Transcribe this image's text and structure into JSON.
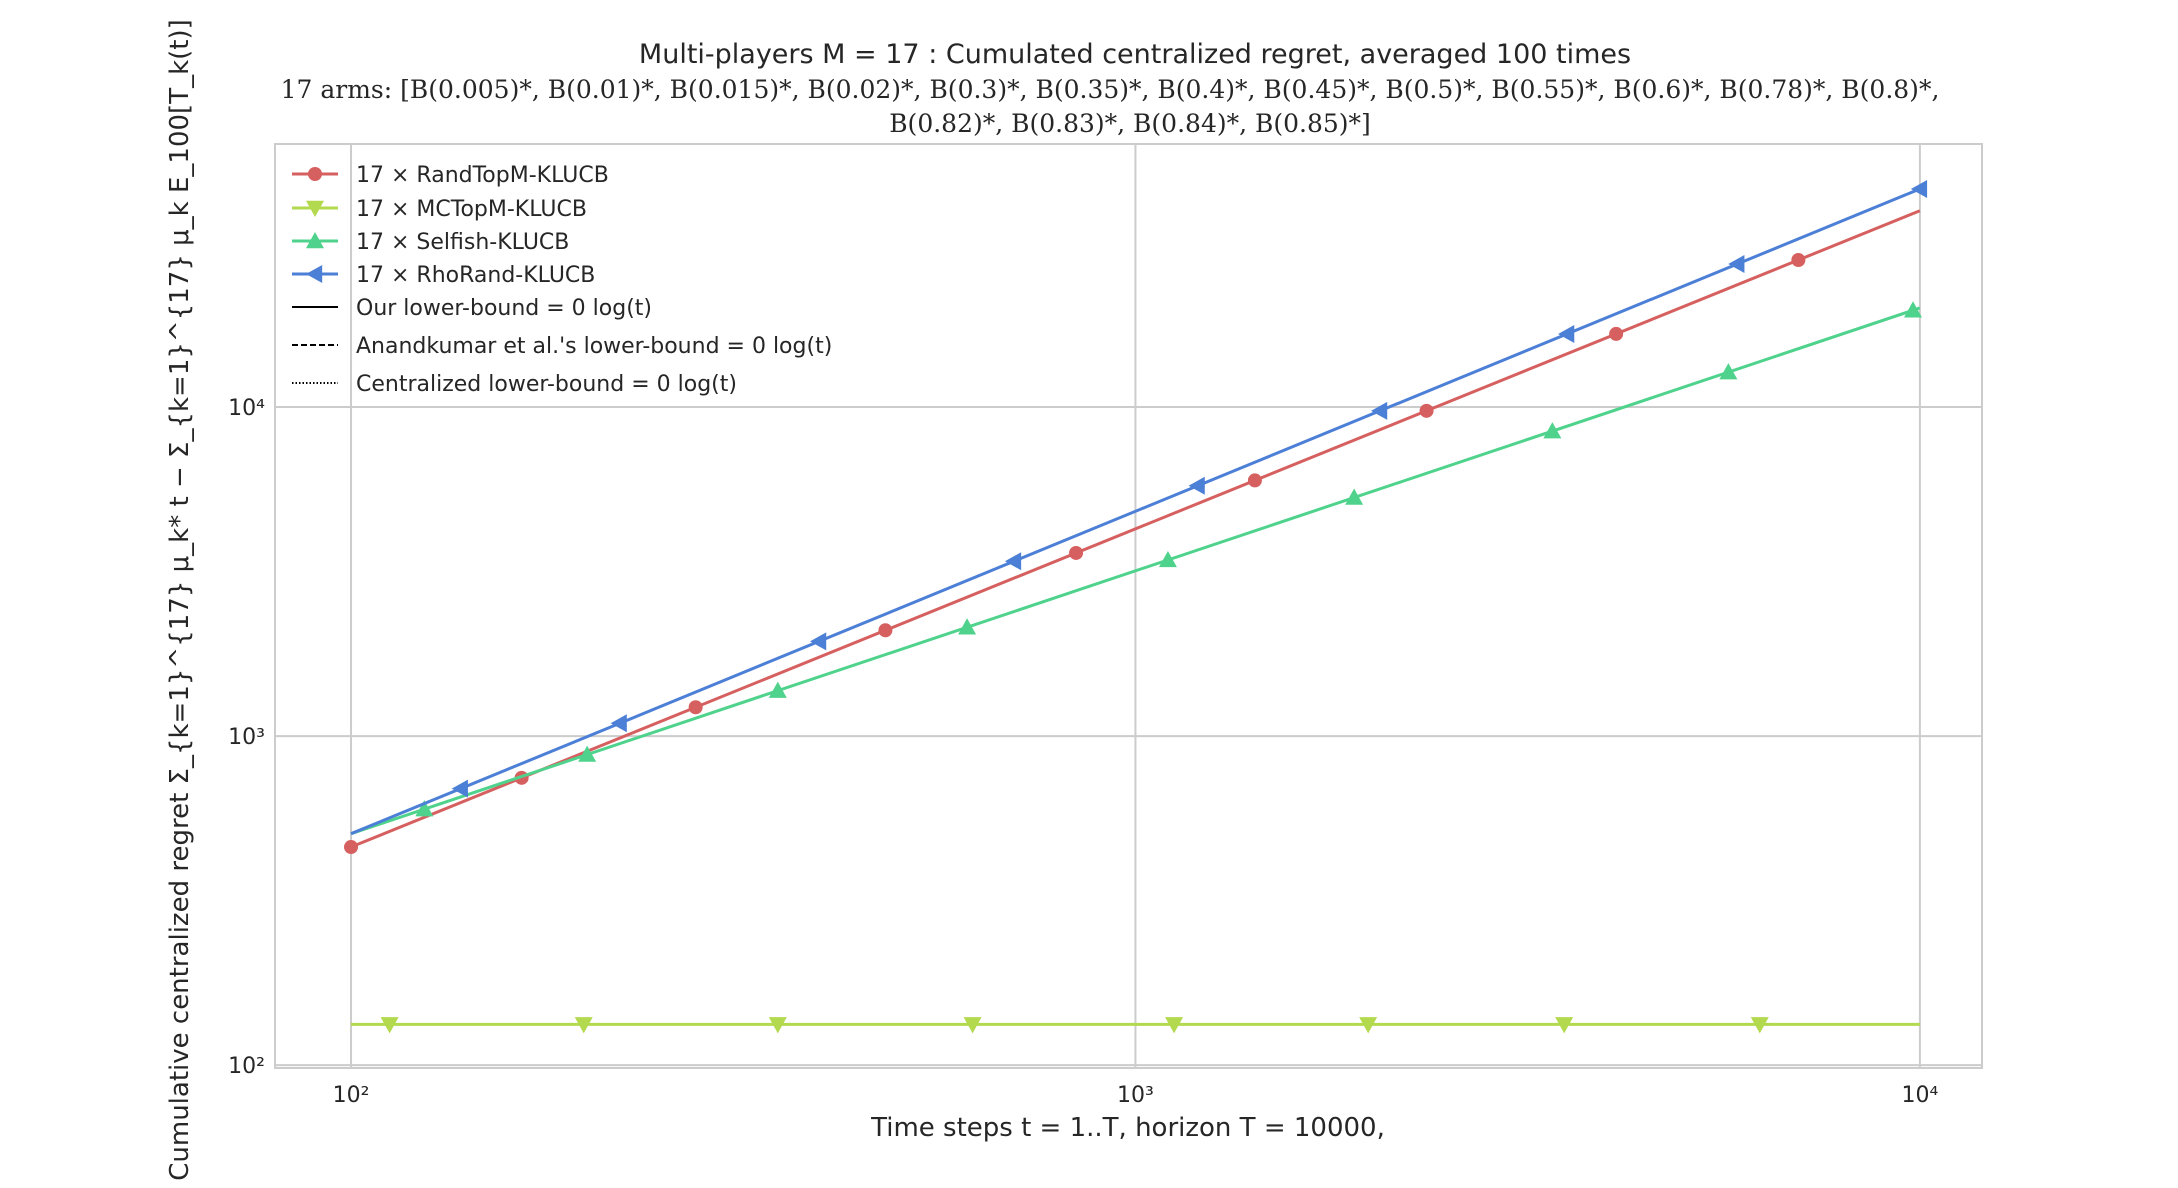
{
  "chart_data": {
    "type": "line",
    "title": "Multi-players M = 17 : Cumulated centralized regret, averaged 100 times",
    "subtitle_line1": "17 arms: [B(0.005)*, B(0.01)*, B(0.015)*, B(0.02)*, B(0.3)*, B(0.35)*, B(0.4)*, B(0.45)*, B(0.5)*, B(0.55)*, B(0.6)*, B(0.78)*, B(0.8)*,",
    "subtitle_line2": "B(0.82)*, B(0.83)*, B(0.84)*, B(0.85)*]",
    "xlabel": "Time steps t = 1..T, horizon T = 10000,",
    "ylabel": "Cumulative centralized regret  Σ_{k=1}^{17} μ_k* t − Σ_{k=1}^{17} μ_k E_100[T_k(t)]",
    "xscale": "log",
    "yscale": "log",
    "xlim": [
      80,
      12000
    ],
    "ylim": [
      98,
      63000
    ],
    "grid": true,
    "legend_position": "top-left",
    "x_ticks": [
      {
        "value": 100,
        "label": "10²"
      },
      {
        "value": 1000,
        "label": "10³"
      },
      {
        "value": 10000,
        "label": "10⁴"
      }
    ],
    "y_ticks": [
      {
        "value": 100,
        "label": "10²"
      },
      {
        "value": 1000,
        "label": "10³"
      },
      {
        "value": 10000,
        "label": "10⁴"
      }
    ],
    "series": [
      {
        "name": "17 × RandTopM-KLUCB",
        "color": "#d65f5f",
        "marker": "circle",
        "x": [
          100,
          10000
        ],
        "y": [
          460,
          39500
        ],
        "marker_x": [
          100,
          165,
          275,
          480,
          840,
          1420,
          2350,
          4100,
          7000
        ]
      },
      {
        "name": "17 × MCTopM-KLUCB",
        "color": "#b3d94f",
        "marker": "triangle-down",
        "x": [
          100,
          10000
        ],
        "y": [
          133,
          133
        ],
        "marker_x": [
          112,
          198,
          350,
          620,
          1120,
          1980,
          3520,
          6250
        ]
      },
      {
        "name": "17 × Selfish-KLUCB",
        "color": "#4fd38c",
        "marker": "triangle-up",
        "x": [
          100,
          10000
        ],
        "y": [
          505,
          20000
        ],
        "marker_x": [
          124,
          200,
          350,
          610,
          1100,
          1900,
          3400,
          5700,
          9800
        ]
      },
      {
        "name": "17 × RhoRand-KLUCB",
        "color": "#4c7fd6",
        "marker": "triangle-left",
        "x": [
          100,
          10000
        ],
        "y": [
          505,
          46000
        ],
        "marker_x": [
          138,
          220,
          395,
          700,
          1200,
          2050,
          3550,
          5850,
          10000
        ]
      },
      {
        "name": "Our lower-bound = 0 log(t)",
        "color": "#000000",
        "style": "solid",
        "x": [],
        "y": []
      },
      {
        "name": "Anandkumar et al.'s lower-bound = 0 log(t)",
        "color": "#000000",
        "style": "dashed",
        "x": [],
        "y": []
      },
      {
        "name": "Centralized lower-bound = 0 log(t)",
        "color": "#000000",
        "style": "dotted",
        "x": [],
        "y": []
      }
    ]
  },
  "colors": {
    "grid": "#cccccc",
    "frame": "#cccccc",
    "text": "#262626"
  }
}
